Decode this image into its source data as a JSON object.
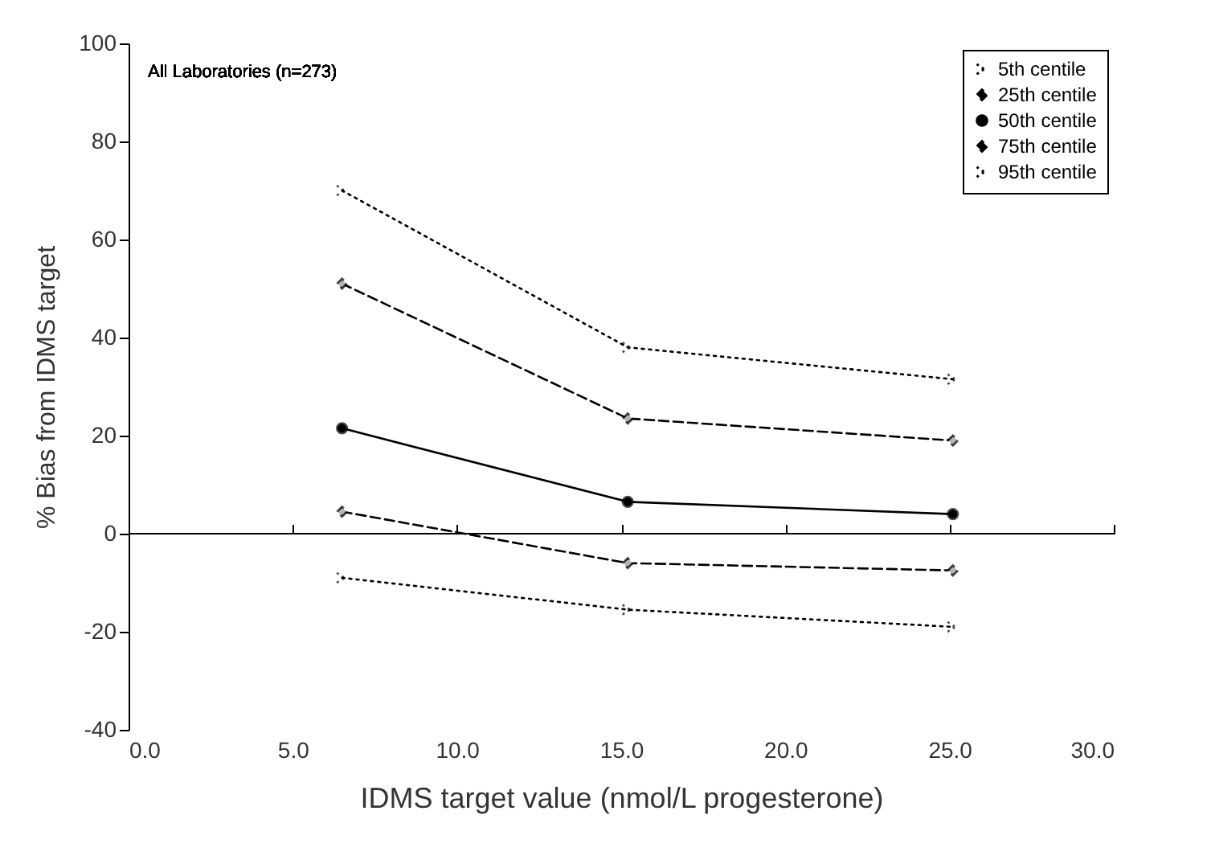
{
  "chart_data": {
    "type": "line",
    "xlabel": "IDMS target value (nmol/L progesterone)",
    "ylabel": "% Bias from IDMS target",
    "annotations": [
      "All Laboratories (n=273)"
    ],
    "x": [
      6.5,
      15.2,
      25.1
    ],
    "series": [
      {
        "name": "5th centile",
        "color": "#000000",
        "values": [
          -9,
          -15.5,
          -19
        ],
        "marker": "cross",
        "line_style": "dotted"
      },
      {
        "name": "25th centile",
        "color": "#000000",
        "values": [
          4.5,
          -6,
          -7.5
        ],
        "marker": "diamond",
        "line_style": "dashed"
      },
      {
        "name": "50th centile",
        "color": "#000000",
        "values": [
          21.5,
          6.5,
          4
        ],
        "marker": "circle",
        "line_style": "solid"
      },
      {
        "name": "75th centile",
        "color": "#000000",
        "values": [
          51,
          23.5,
          19
        ],
        "marker": "diamond",
        "line_style": "dashed"
      },
      {
        "name": "95th centile",
        "color": "#000000",
        "values": [
          70,
          38,
          31.5
        ],
        "marker": "cross",
        "line_style": "dotted"
      }
    ],
    "xlim": [
      0,
      30
    ],
    "xticks": [
      {
        "value": 0,
        "label": "0.0"
      },
      {
        "value": 5,
        "label": "5.0"
      },
      {
        "value": 10,
        "label": "10.0"
      },
      {
        "value": 15,
        "label": "15.0"
      },
      {
        "value": 20,
        "label": "20.0"
      },
      {
        "value": 25,
        "label": "25.0"
      },
      {
        "value": 30,
        "label": "30.0"
      }
    ],
    "ylim": [
      -40,
      100
    ],
    "yticks": [
      -40,
      -20,
      0,
      20,
      40,
      60,
      80,
      100
    ],
    "ref_lines": [
      {
        "axis": "y",
        "value": 0,
        "color": "#000000",
        "line_style": "solid"
      }
    ],
    "grid": false,
    "legend": "top right"
  }
}
